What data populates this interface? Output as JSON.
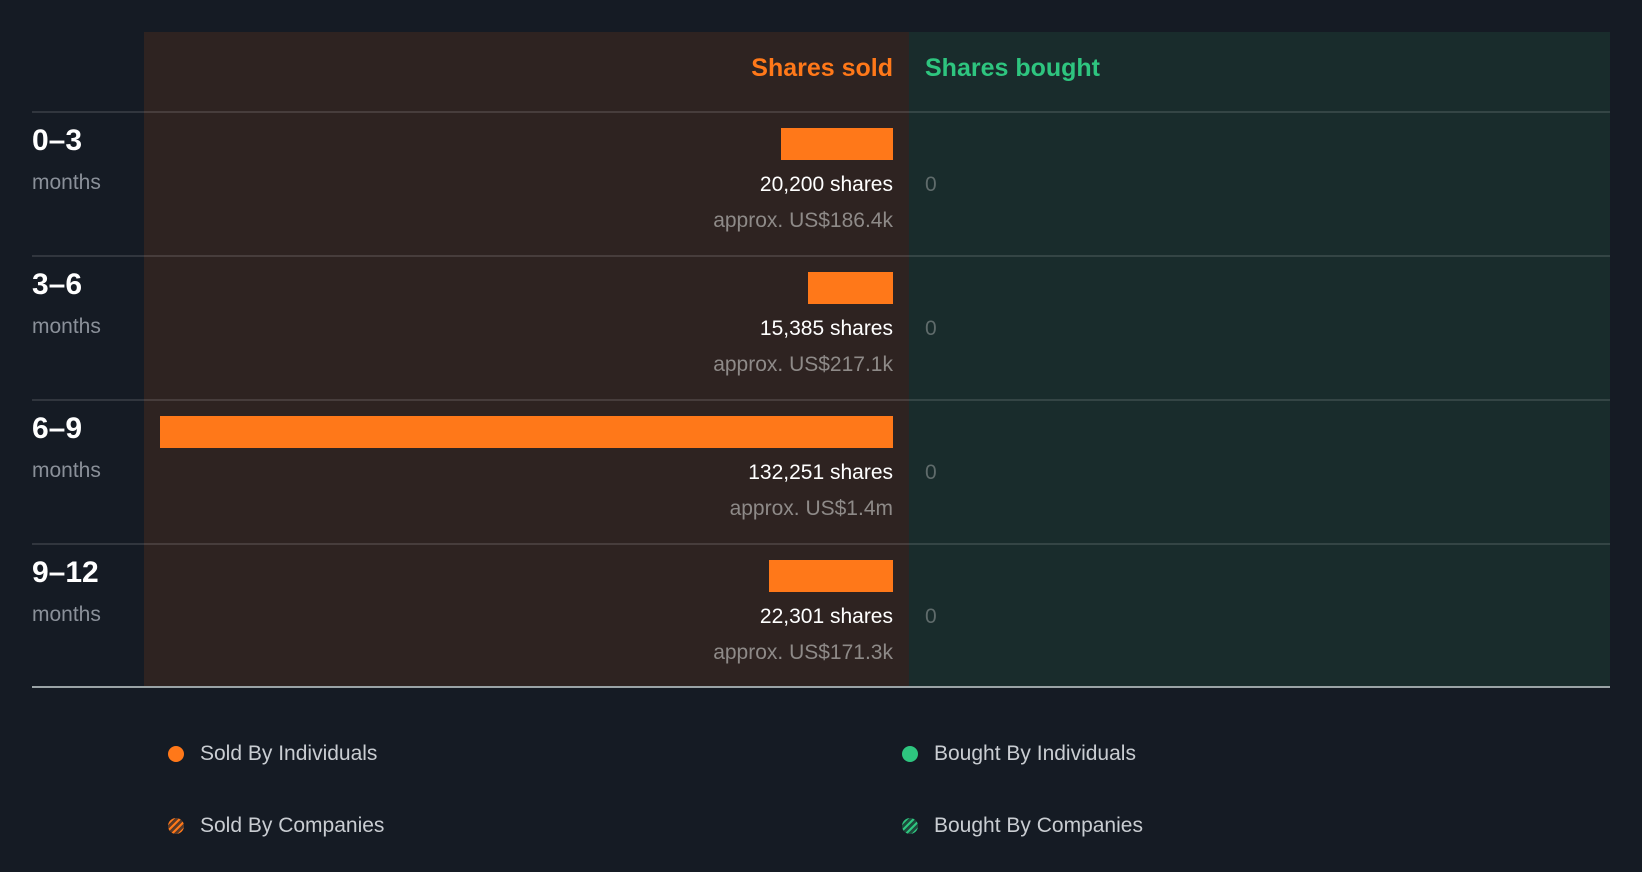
{
  "chart_data": {
    "type": "bar",
    "orientation": "horizontal-diverging",
    "title": "",
    "columns": [
      "Shares sold",
      "Shares bought"
    ],
    "categories": [
      "0–3 months",
      "3–6 months",
      "6–9 months",
      "9–12 months"
    ],
    "series": [
      {
        "name": "Shares sold",
        "values": [
          20200,
          15385,
          132251,
          22301
        ],
        "approx_value": [
          "US$186.4k",
          "US$217.1k",
          "US$1.4m",
          "US$171.3k"
        ]
      },
      {
        "name": "Shares bought",
        "values": [
          0,
          0,
          0,
          0
        ]
      }
    ],
    "legend": [
      "Sold By Individuals",
      "Bought By Individuals",
      "Sold By Companies",
      "Bought By Companies"
    ],
    "legend_position": "bottom",
    "xmax": 132251
  },
  "colors": {
    "sold": "#ff7819",
    "bought": "#2ec57f",
    "sold_panel": "#2e2321",
    "bought_panel": "#192c2c",
    "background": "#151b24"
  },
  "header": {
    "sold_label": "Shares sold",
    "bought_label": "Shares bought"
  },
  "rows": [
    {
      "period": "0–3",
      "unit": "months",
      "shares": 20200,
      "shares_label": "20,200 shares",
      "approx": "approx. US$186.4k",
      "bought": "0"
    },
    {
      "period": "3–6",
      "unit": "months",
      "shares": 15385,
      "shares_label": "15,385 shares",
      "approx": "approx. US$217.1k",
      "bought": "0"
    },
    {
      "period": "6–9",
      "unit": "months",
      "shares": 132251,
      "shares_label": "132,251 shares",
      "approx": "approx. US$1.4m",
      "bought": "0"
    },
    {
      "period": "9–12",
      "unit": "months",
      "shares": 22301,
      "shares_label": "22,301 shares",
      "approx": "approx. US$171.3k",
      "bought": "0"
    }
  ],
  "legend": {
    "sold_individuals": "Sold By Individuals",
    "bought_individuals": "Bought By Individuals",
    "sold_companies": "Sold By Companies",
    "bought_companies": "Bought By Companies"
  }
}
